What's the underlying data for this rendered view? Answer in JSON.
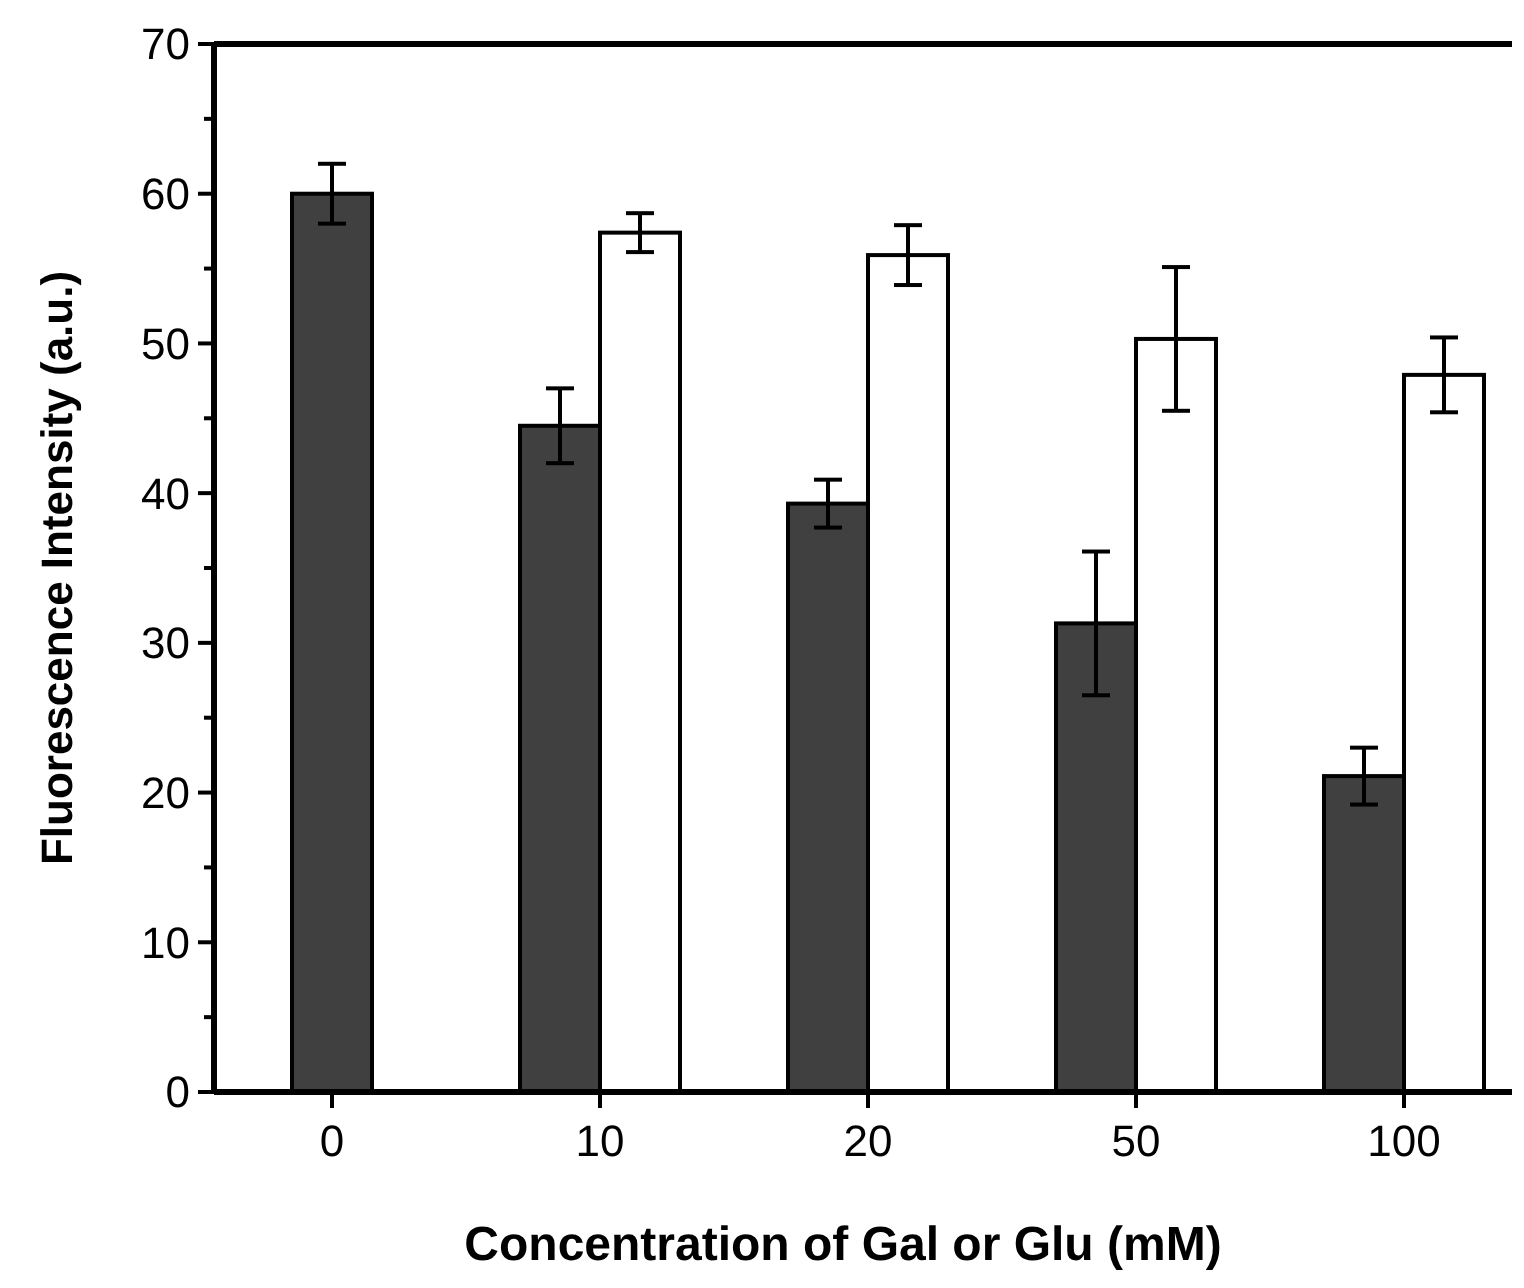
{
  "chart_data": {
    "type": "bar",
    "xlabel": "Concentration of Gal or Glu (mM)",
    "ylabel": "Fluorescence Intensity (a.u.)",
    "categories": [
      "0",
      "10",
      "20",
      "50",
      "100"
    ],
    "ylim": [
      0,
      70
    ],
    "yticks": [
      0,
      10,
      20,
      30,
      40,
      50,
      60,
      70
    ],
    "grid": false,
    "series": [
      {
        "color": "#404040",
        "values": [
          60,
          44.5,
          39.3,
          31.3,
          21.1
        ],
        "errors": [
          2,
          2.5,
          1.6,
          4.8,
          1.9
        ]
      },
      {
        "color": "#ffffff",
        "values": [
          null,
          57.4,
          55.9,
          50.3,
          47.9
        ],
        "errors": [
          null,
          1.3,
          2,
          4.8,
          2.5
        ]
      }
    ]
  }
}
